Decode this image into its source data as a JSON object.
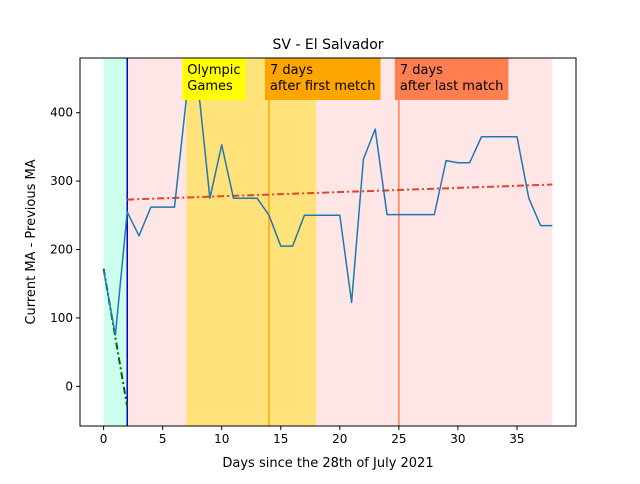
{
  "chart_data": {
    "type": "line",
    "title": "SV - El Salvador",
    "xlabel": "Days since the 28th of July 2021",
    "ylabel": "Current MA - Previous MA",
    "xlim": [
      -2,
      40
    ],
    "ylim": [
      -58,
      480
    ],
    "x_ticks": [
      0,
      5,
      10,
      15,
      20,
      25,
      30,
      35
    ],
    "y_ticks": [
      0,
      100,
      200,
      300,
      400
    ],
    "grid": false,
    "colors": {
      "series": "#1f77b4",
      "trend_before": "#006400",
      "trend_after": "#e0442a",
      "event_line": "#0000cd",
      "region_before": "#ccffee",
      "region_after": "#ffe6e6",
      "olympics_span": "#ffe27a",
      "line_first_match": "#ffa500",
      "line_last_match": "#ff7f50"
    },
    "regions": [
      {
        "id": "before",
        "x0": 0,
        "x1": 2
      },
      {
        "id": "after",
        "x0": 2,
        "x1": 38
      },
      {
        "id": "olympics",
        "x0": 7,
        "x1": 18
      }
    ],
    "vlines": [
      {
        "id": "event",
        "x": 2
      },
      {
        "id": "first-match",
        "x": 14
      },
      {
        "id": "last-match",
        "x": 25
      }
    ],
    "annotations": [
      {
        "id": "olympics",
        "lines": [
          "Olympic",
          "Games"
        ],
        "x": 7,
        "bg": "#ffff00"
      },
      {
        "id": "first-match",
        "lines": [
          "7 days",
          "after first metch"
        ],
        "x": 14,
        "bg": "#ffa500"
      },
      {
        "id": "last-match",
        "lines": [
          "7 days",
          "after last match"
        ],
        "x": 25,
        "bg": "#ff7f50"
      }
    ],
    "series": [
      {
        "x": [
          0,
          1,
          2,
          3,
          4,
          5,
          6,
          7,
          8,
          9,
          10,
          11,
          12,
          13,
          14,
          15,
          16,
          17,
          18,
          19,
          20,
          21,
          22,
          23,
          24,
          25,
          26,
          27,
          28,
          29,
          30,
          31,
          32,
          33,
          34,
          35,
          36,
          37,
          38
        ],
        "values": [
          170,
          75,
          255,
          220,
          262,
          262,
          262,
          420,
          440,
          275,
          353,
          275,
          275,
          275,
          250,
          205,
          205,
          250,
          250,
          250,
          250,
          123,
          332,
          376,
          251,
          251,
          251,
          251,
          251,
          330,
          327,
          327,
          365,
          365,
          365,
          365,
          275,
          235,
          235
        ]
      }
    ],
    "trend_before": {
      "x": [
        0,
        2
      ],
      "y": [
        172,
        -30
      ]
    },
    "trend_after": {
      "x": [
        2,
        38
      ],
      "y": [
        273,
        295
      ]
    }
  }
}
